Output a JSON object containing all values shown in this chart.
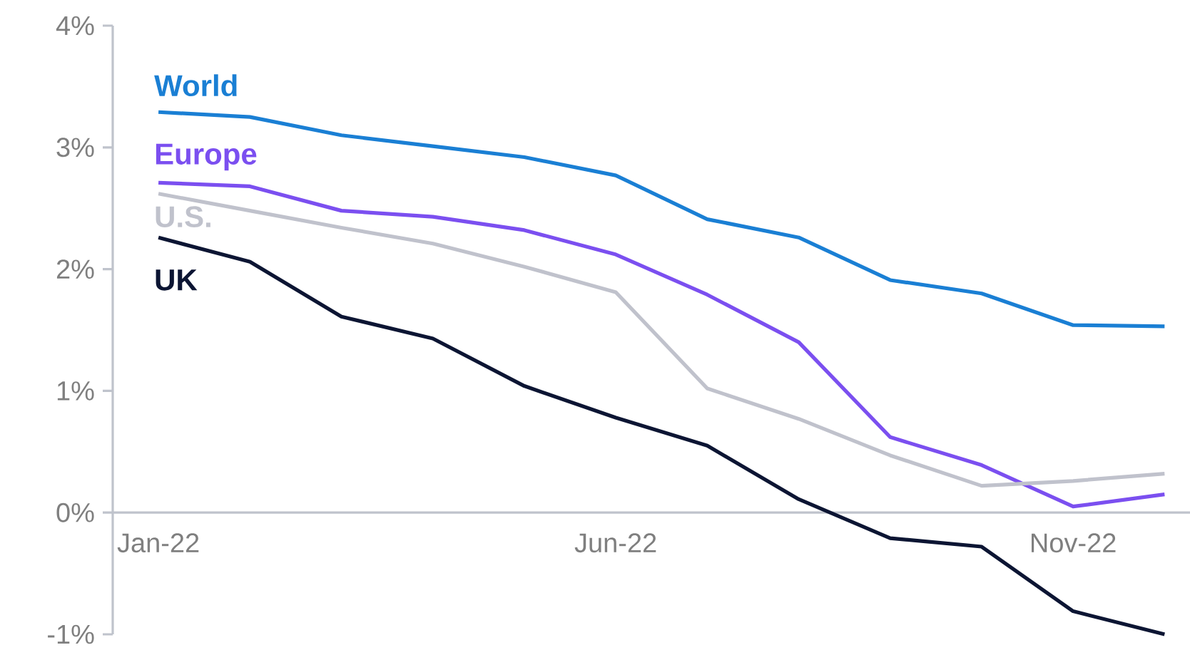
{
  "chart_data": {
    "type": "line",
    "categories": [
      "Jan-22",
      null,
      null,
      null,
      null,
      "Jun-22",
      null,
      null,
      null,
      null,
      "Nov-22",
      null
    ],
    "series": [
      {
        "name": "World",
        "color": "#1a7fd4",
        "values": [
          3.29,
          3.25,
          3.1,
          3.01,
          2.92,
          2.77,
          2.41,
          2.26,
          1.91,
          1.8,
          1.54,
          1.53
        ]
      },
      {
        "name": "Europe",
        "color": "#7b4ff0",
        "values": [
          2.71,
          2.68,
          2.48,
          2.43,
          2.32,
          2.12,
          1.79,
          1.4,
          0.62,
          0.39,
          0.05,
          0.15
        ]
      },
      {
        "name": "U.S.",
        "color": "#c0c2cc",
        "values": [
          2.62,
          2.48,
          2.34,
          2.21,
          2.02,
          1.81,
          1.02,
          0.77,
          0.47,
          0.22,
          0.26,
          0.32
        ]
      },
      {
        "name": "UK",
        "color": "#0c1533",
        "values": [
          2.26,
          2.06,
          1.61,
          1.43,
          1.04,
          0.78,
          0.55,
          0.11,
          -0.21,
          -0.28,
          -0.81,
          -1.0
        ]
      }
    ],
    "ylim": [
      -1,
      4
    ],
    "yticks": [
      {
        "value": -1,
        "label": "-1%"
      },
      {
        "value": 0,
        "label": "0%"
      },
      {
        "value": 1,
        "label": "1%"
      },
      {
        "value": 2,
        "label": "2%"
      },
      {
        "value": 3,
        "label": "3%"
      },
      {
        "value": 4,
        "label": "4%"
      }
    ]
  }
}
